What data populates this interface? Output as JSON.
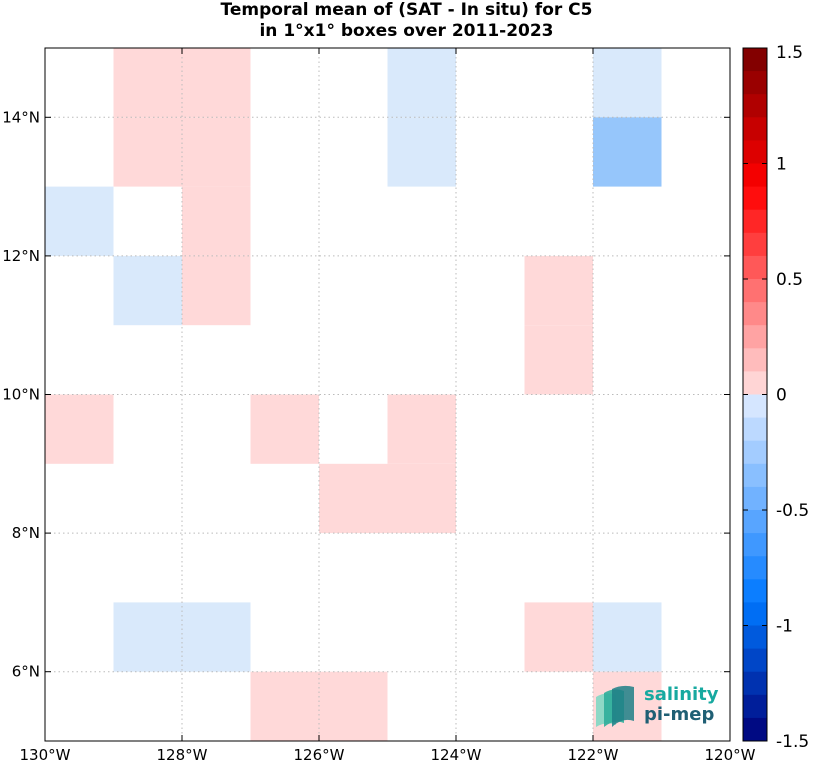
{
  "title": {
    "line1": "Temporal mean of (SAT - In situ) for C5",
    "line2": "in 1°x1° boxes over 2011-2023"
  },
  "logo": {
    "line1": "salinity",
    "line2": "pi-mep"
  },
  "colors": {
    "pink": "#ffd9d9",
    "light_blue": "#d9e9fb",
    "medium_blue": "#96c6fb",
    "white": "#ffffff",
    "grid": "#bbbbbb"
  },
  "chart_data": {
    "type": "heatmap",
    "title": "Temporal mean of (SAT - In situ) for C5 in 1°x1° boxes over 2011-2023",
    "xlabel": "",
    "ylabel": "",
    "xlim": [
      -130,
      -120
    ],
    "ylim": [
      5,
      15
    ],
    "x_ticks": [
      -130,
      -128,
      -126,
      -124,
      -122,
      -120
    ],
    "x_tick_labels": [
      "130°W",
      "128°W",
      "126°W",
      "124°W",
      "122°W",
      "120°W"
    ],
    "y_ticks": [
      6,
      8,
      10,
      12,
      14
    ],
    "y_tick_labels": [
      "6°N",
      "8°N",
      "10°N",
      "12°N",
      "14°N"
    ],
    "grid": true,
    "cell_size_deg": 1,
    "cells": [
      {
        "lon": -129,
        "lat": 14,
        "value": 0.1
      },
      {
        "lon": -128,
        "lat": 14,
        "value": 0.1
      },
      {
        "lon": -129,
        "lat": 13,
        "value": 0.1
      },
      {
        "lon": -128,
        "lat": 13,
        "value": 0.1
      },
      {
        "lon": -128,
        "lat": 12,
        "value": 0.1
      },
      {
        "lon": -128,
        "lat": 11,
        "value": 0.1
      },
      {
        "lon": -130,
        "lat": 12,
        "value": -0.1
      },
      {
        "lon": -129,
        "lat": 11,
        "value": -0.1
      },
      {
        "lon": -125,
        "lat": 14,
        "value": -0.1
      },
      {
        "lon": -125,
        "lat": 13,
        "value": -0.1
      },
      {
        "lon": -122,
        "lat": 14,
        "value": -0.1
      },
      {
        "lon": -122,
        "lat": 13,
        "value": -0.3
      },
      {
        "lon": -123,
        "lat": 11,
        "value": 0.1
      },
      {
        "lon": -123,
        "lat": 10,
        "value": 0.1
      },
      {
        "lon": -130,
        "lat": 9,
        "value": 0.1
      },
      {
        "lon": -127,
        "lat": 9,
        "value": 0.1
      },
      {
        "lon": -125,
        "lat": 9,
        "value": 0.1
      },
      {
        "lon": -126,
        "lat": 8,
        "value": 0.1
      },
      {
        "lon": -125,
        "lat": 8,
        "value": 0.1
      },
      {
        "lon": -129,
        "lat": 6,
        "value": -0.1
      },
      {
        "lon": -128,
        "lat": 6,
        "value": -0.1
      },
      {
        "lon": -123,
        "lat": 6,
        "value": 0.1
      },
      {
        "lon": -122,
        "lat": 6,
        "value": -0.1
      },
      {
        "lon": -127,
        "lat": 5,
        "value": 0.1
      },
      {
        "lon": -126,
        "lat": 5,
        "value": 0.1
      },
      {
        "lon": -122,
        "lat": 5,
        "value": 0.1
      }
    ],
    "colorbar": {
      "range": [
        -1.5,
        1.5
      ],
      "ticks": [
        -1.5,
        -1,
        -0.5,
        0,
        0.5,
        1,
        1.5
      ],
      "tick_labels": [
        "-1.5",
        "-1",
        "-0.5",
        "0",
        "0.5",
        "1",
        "1.5"
      ],
      "levels": 30,
      "placement": "right"
    }
  }
}
